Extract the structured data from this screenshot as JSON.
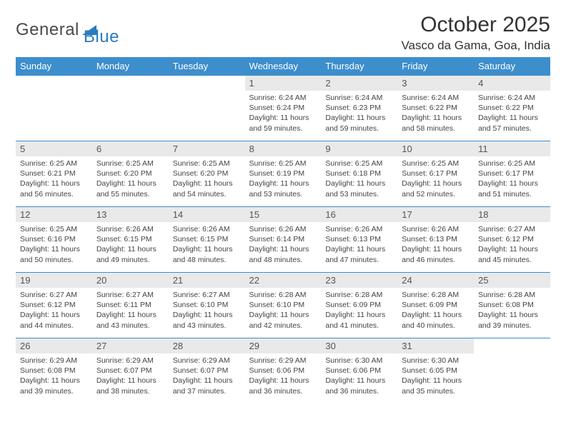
{
  "logo": {
    "text1": "General",
    "text2": "Blue"
  },
  "header": {
    "month": "October 2025",
    "location": "Vasco da Gama, Goa, India"
  },
  "colors": {
    "header_bg": "#3d8ecd",
    "header_fg": "#ffffff",
    "daynum_bg": "#e9e9e9",
    "border": "#3d8ecd",
    "logo_accent": "#2a7bbf"
  },
  "day_names": [
    "Sunday",
    "Monday",
    "Tuesday",
    "Wednesday",
    "Thursday",
    "Friday",
    "Saturday"
  ],
  "weeks": [
    [
      {
        "empty": true
      },
      {
        "empty": true
      },
      {
        "empty": true
      },
      {
        "day": "1",
        "sunrise": "Sunrise: 6:24 AM",
        "sunset": "Sunset: 6:24 PM",
        "daylight": "Daylight: 11 hours and 59 minutes."
      },
      {
        "day": "2",
        "sunrise": "Sunrise: 6:24 AM",
        "sunset": "Sunset: 6:23 PM",
        "daylight": "Daylight: 11 hours and 59 minutes."
      },
      {
        "day": "3",
        "sunrise": "Sunrise: 6:24 AM",
        "sunset": "Sunset: 6:22 PM",
        "daylight": "Daylight: 11 hours and 58 minutes."
      },
      {
        "day": "4",
        "sunrise": "Sunrise: 6:24 AM",
        "sunset": "Sunset: 6:22 PM",
        "daylight": "Daylight: 11 hours and 57 minutes."
      }
    ],
    [
      {
        "day": "5",
        "sunrise": "Sunrise: 6:25 AM",
        "sunset": "Sunset: 6:21 PM",
        "daylight": "Daylight: 11 hours and 56 minutes."
      },
      {
        "day": "6",
        "sunrise": "Sunrise: 6:25 AM",
        "sunset": "Sunset: 6:20 PM",
        "daylight": "Daylight: 11 hours and 55 minutes."
      },
      {
        "day": "7",
        "sunrise": "Sunrise: 6:25 AM",
        "sunset": "Sunset: 6:20 PM",
        "daylight": "Daylight: 11 hours and 54 minutes."
      },
      {
        "day": "8",
        "sunrise": "Sunrise: 6:25 AM",
        "sunset": "Sunset: 6:19 PM",
        "daylight": "Daylight: 11 hours and 53 minutes."
      },
      {
        "day": "9",
        "sunrise": "Sunrise: 6:25 AM",
        "sunset": "Sunset: 6:18 PM",
        "daylight": "Daylight: 11 hours and 53 minutes."
      },
      {
        "day": "10",
        "sunrise": "Sunrise: 6:25 AM",
        "sunset": "Sunset: 6:17 PM",
        "daylight": "Daylight: 11 hours and 52 minutes."
      },
      {
        "day": "11",
        "sunrise": "Sunrise: 6:25 AM",
        "sunset": "Sunset: 6:17 PM",
        "daylight": "Daylight: 11 hours and 51 minutes."
      }
    ],
    [
      {
        "day": "12",
        "sunrise": "Sunrise: 6:25 AM",
        "sunset": "Sunset: 6:16 PM",
        "daylight": "Daylight: 11 hours and 50 minutes."
      },
      {
        "day": "13",
        "sunrise": "Sunrise: 6:26 AM",
        "sunset": "Sunset: 6:15 PM",
        "daylight": "Daylight: 11 hours and 49 minutes."
      },
      {
        "day": "14",
        "sunrise": "Sunrise: 6:26 AM",
        "sunset": "Sunset: 6:15 PM",
        "daylight": "Daylight: 11 hours and 48 minutes."
      },
      {
        "day": "15",
        "sunrise": "Sunrise: 6:26 AM",
        "sunset": "Sunset: 6:14 PM",
        "daylight": "Daylight: 11 hours and 48 minutes."
      },
      {
        "day": "16",
        "sunrise": "Sunrise: 6:26 AM",
        "sunset": "Sunset: 6:13 PM",
        "daylight": "Daylight: 11 hours and 47 minutes."
      },
      {
        "day": "17",
        "sunrise": "Sunrise: 6:26 AM",
        "sunset": "Sunset: 6:13 PM",
        "daylight": "Daylight: 11 hours and 46 minutes."
      },
      {
        "day": "18",
        "sunrise": "Sunrise: 6:27 AM",
        "sunset": "Sunset: 6:12 PM",
        "daylight": "Daylight: 11 hours and 45 minutes."
      }
    ],
    [
      {
        "day": "19",
        "sunrise": "Sunrise: 6:27 AM",
        "sunset": "Sunset: 6:12 PM",
        "daylight": "Daylight: 11 hours and 44 minutes."
      },
      {
        "day": "20",
        "sunrise": "Sunrise: 6:27 AM",
        "sunset": "Sunset: 6:11 PM",
        "daylight": "Daylight: 11 hours and 43 minutes."
      },
      {
        "day": "21",
        "sunrise": "Sunrise: 6:27 AM",
        "sunset": "Sunset: 6:10 PM",
        "daylight": "Daylight: 11 hours and 43 minutes."
      },
      {
        "day": "22",
        "sunrise": "Sunrise: 6:28 AM",
        "sunset": "Sunset: 6:10 PM",
        "daylight": "Daylight: 11 hours and 42 minutes."
      },
      {
        "day": "23",
        "sunrise": "Sunrise: 6:28 AM",
        "sunset": "Sunset: 6:09 PM",
        "daylight": "Daylight: 11 hours and 41 minutes."
      },
      {
        "day": "24",
        "sunrise": "Sunrise: 6:28 AM",
        "sunset": "Sunset: 6:09 PM",
        "daylight": "Daylight: 11 hours and 40 minutes."
      },
      {
        "day": "25",
        "sunrise": "Sunrise: 6:28 AM",
        "sunset": "Sunset: 6:08 PM",
        "daylight": "Daylight: 11 hours and 39 minutes."
      }
    ],
    [
      {
        "day": "26",
        "sunrise": "Sunrise: 6:29 AM",
        "sunset": "Sunset: 6:08 PM",
        "daylight": "Daylight: 11 hours and 39 minutes."
      },
      {
        "day": "27",
        "sunrise": "Sunrise: 6:29 AM",
        "sunset": "Sunset: 6:07 PM",
        "daylight": "Daylight: 11 hours and 38 minutes."
      },
      {
        "day": "28",
        "sunrise": "Sunrise: 6:29 AM",
        "sunset": "Sunset: 6:07 PM",
        "daylight": "Daylight: 11 hours and 37 minutes."
      },
      {
        "day": "29",
        "sunrise": "Sunrise: 6:29 AM",
        "sunset": "Sunset: 6:06 PM",
        "daylight": "Daylight: 11 hours and 36 minutes."
      },
      {
        "day": "30",
        "sunrise": "Sunrise: 6:30 AM",
        "sunset": "Sunset: 6:06 PM",
        "daylight": "Daylight: 11 hours and 36 minutes."
      },
      {
        "day": "31",
        "sunrise": "Sunrise: 6:30 AM",
        "sunset": "Sunset: 6:05 PM",
        "daylight": "Daylight: 11 hours and 35 minutes."
      },
      {
        "empty": true
      }
    ]
  ]
}
